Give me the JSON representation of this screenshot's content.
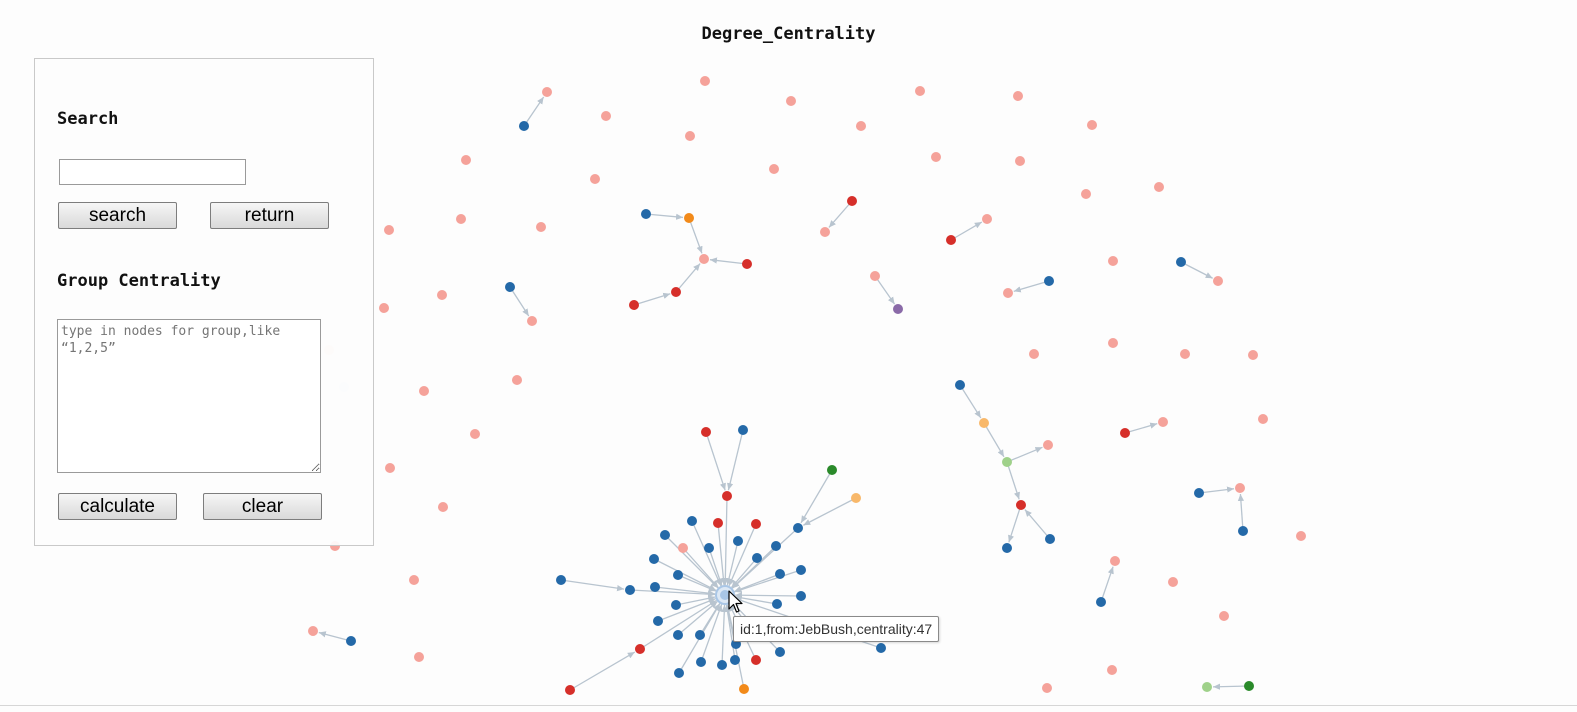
{
  "title": "Degree_Centrality",
  "panel": {
    "search_heading": "Search",
    "search_value": "",
    "search_button": "search",
    "return_button": "return",
    "group_heading": "Group Centrality",
    "group_placeholder": "type in nodes for group,like “1,2,5”",
    "calculate_button": "calculate",
    "clear_button": "clear"
  },
  "tooltip": {
    "text": "id:1,from:JebBush,centrality:47"
  },
  "colors": {
    "pink": "#f5a29a",
    "blue": "#2469a8",
    "red": "#d62f2a",
    "orange": "#f28a1a",
    "light_orange": "#f8b86a",
    "green": "#2a8a2a",
    "light_green": "#9fd18a",
    "purple": "#8a6aa8",
    "light_blue": "#a9c6e6",
    "edge": "#b8c4cf"
  },
  "icons": {
    "cursor": "arrow-cursor-icon"
  }
}
